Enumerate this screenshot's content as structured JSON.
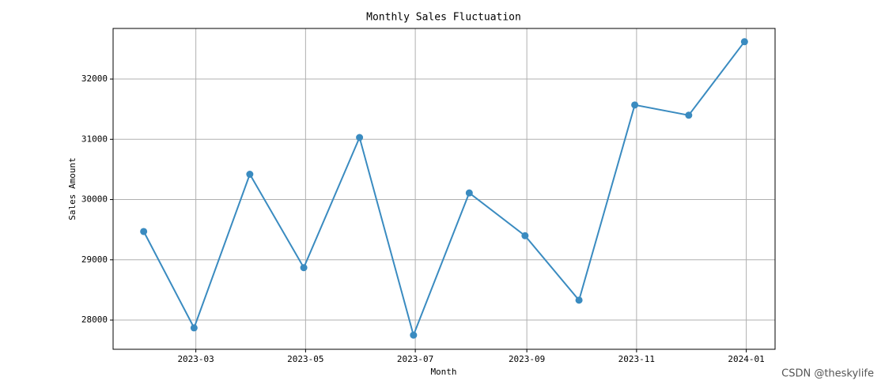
{
  "chart_data": {
    "type": "line",
    "title": "Monthly Sales Fluctuation",
    "x_label": "Month",
    "y_label": "Sales Amount",
    "x": [
      "2023-01",
      "2023-02",
      "2023-03",
      "2023-04",
      "2023-05",
      "2023-06",
      "2023-07",
      "2023-08",
      "2023-09",
      "2023-10",
      "2023-11",
      "2023-12"
    ],
    "series": [
      {
        "name": "Sales",
        "color": "#3a8bc0",
        "values": [
          29470,
          27870,
          30420,
          28870,
          31030,
          27750,
          30110,
          29400,
          28330,
          31570,
          31400,
          32620
        ]
      }
    ],
    "xlim": [
      "2023-01-14",
      "2024-01-17"
    ],
    "xticks": [
      "2023-03",
      "2023-05",
      "2023-07",
      "2023-09",
      "2023-11",
      "2024-01"
    ],
    "ylim": [
      27515,
      32840
    ],
    "yticks": [
      28000,
      29000,
      30000,
      31000,
      32000
    ],
    "grid": true,
    "watermark": "CSDN @theskylife"
  }
}
